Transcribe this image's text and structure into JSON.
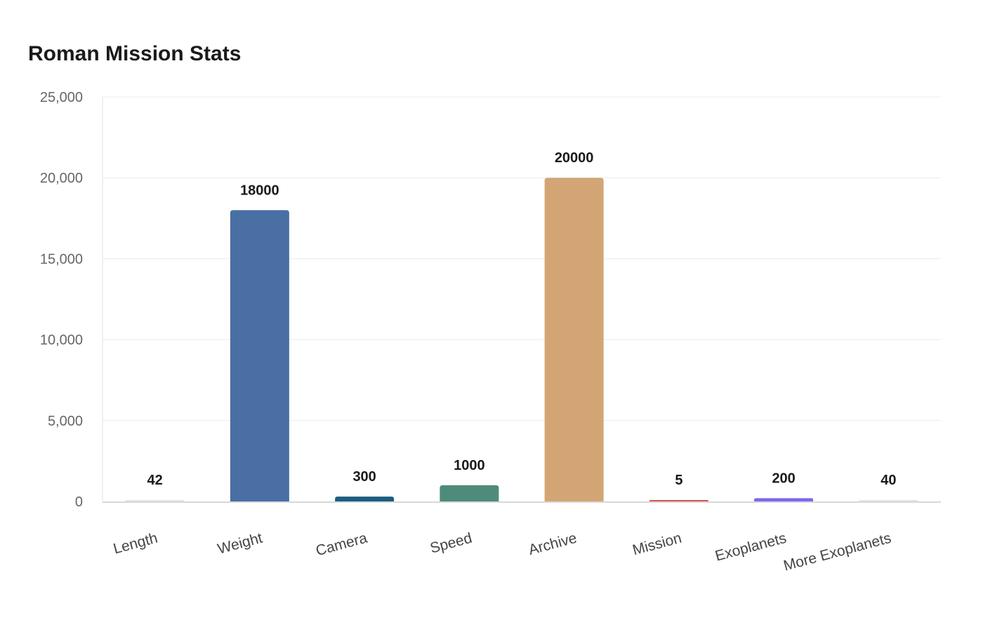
{
  "chart_data": {
    "type": "bar",
    "title": "Roman Mission Stats",
    "categories": [
      "Length",
      "Weight",
      "Camera",
      "Speed",
      "Archive",
      "Mission",
      "Exoplanets",
      "More Exoplanets"
    ],
    "values": [
      42,
      18000,
      300,
      1000,
      20000,
      5,
      200,
      40
    ],
    "colors": [
      "#e8e2da",
      "#4a6fa5",
      "#1b5e83",
      "#4e8b7a",
      "#d4a574",
      "#d9534f",
      "#7b68ee",
      "#e8e2da"
    ],
    "ylim": [
      0,
      25000
    ],
    "yticks": [
      "0",
      "5,000",
      "10,000",
      "15,000",
      "20,000",
      "25,000"
    ],
    "xlabel": "",
    "ylabel": "",
    "grid": true,
    "data_labels": true
  }
}
